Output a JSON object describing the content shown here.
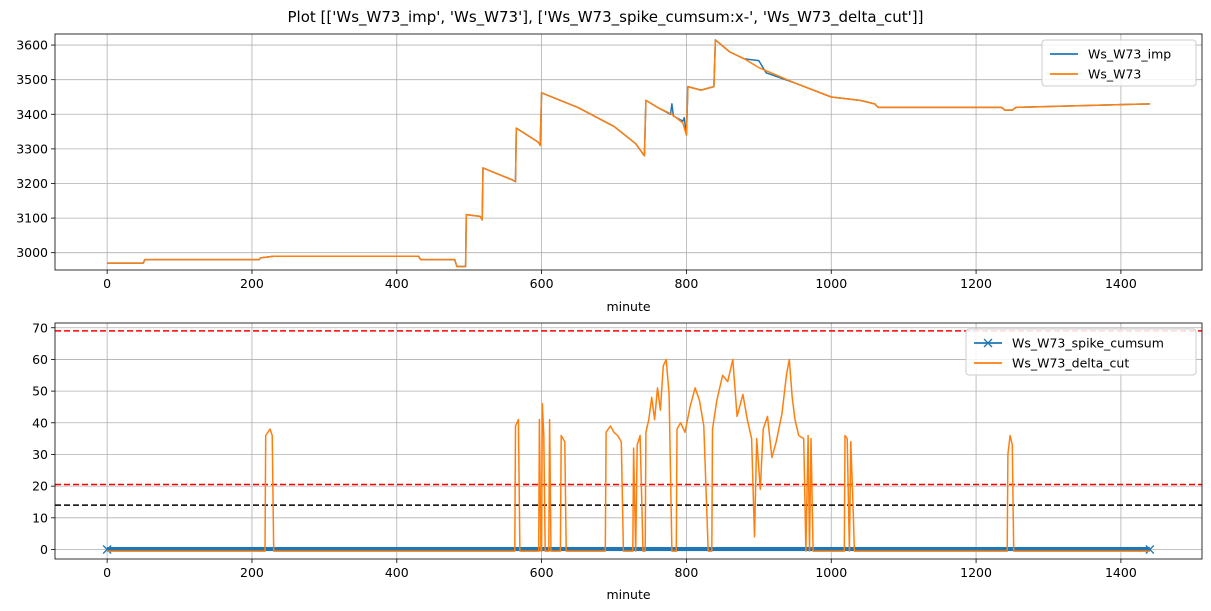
{
  "figure": {
    "suptitle": "Plot [['Ws_W73_imp', 'Ws_W73'], ['Ws_W73_spike_cumsum:x-', 'Ws_W73_delta_cut']]"
  },
  "colors": {
    "blue": "#1f77b4",
    "orange": "#ff7f0e",
    "red": "#ff0000",
    "black": "#000000",
    "grid": "#b0b0b0"
  },
  "chart_data": [
    {
      "type": "line",
      "xlabel": "minute",
      "ylabel": "",
      "xlim": [
        -72,
        1512
      ],
      "ylim": [
        2950,
        3632
      ],
      "xticks": [
        0,
        200,
        400,
        600,
        800,
        1000,
        1200,
        1400
      ],
      "yticks": [
        3000,
        3100,
        3200,
        3300,
        3400,
        3500,
        3600
      ],
      "grid": true,
      "legend": "top-right",
      "series": [
        {
          "name": "Ws_W73_imp",
          "color": "blue",
          "points": [
            [
              0,
              2970
            ],
            [
              50,
              2970
            ],
            [
              52,
              2980
            ],
            [
              210,
              2980
            ],
            [
              212,
              2985
            ],
            [
              230,
              2990
            ],
            [
              430,
              2990
            ],
            [
              433,
              2980
            ],
            [
              480,
              2980
            ],
            [
              483,
              2960
            ],
            [
              495,
              2960
            ],
            [
              496,
              3110
            ],
            [
              515,
              3105
            ],
            [
              518,
              3095
            ],
            [
              519,
              3245
            ],
            [
              560,
              3210
            ],
            [
              564,
              3205
            ],
            [
              565,
              3360
            ],
            [
              595,
              3320
            ],
            [
              598,
              3310
            ],
            [
              600,
              3462
            ],
            [
              650,
              3420
            ],
            [
              700,
              3365
            ],
            [
              730,
              3315
            ],
            [
              742,
              3280
            ],
            [
              744,
              3440
            ],
            [
              760,
              3420
            ],
            [
              778,
              3400
            ],
            [
              780,
              3430
            ],
            [
              782,
              3395
            ],
            [
              795,
              3380
            ],
            [
              797,
              3390
            ],
            [
              800,
              3340
            ],
            [
              802,
              3480
            ],
            [
              820,
              3470
            ],
            [
              838,
              3480
            ],
            [
              840,
              3615
            ],
            [
              860,
              3580
            ],
            [
              880,
              3560
            ],
            [
              900,
              3555
            ],
            [
              910,
              3520
            ],
            [
              950,
              3490
            ],
            [
              1000,
              3450
            ],
            [
              1040,
              3440
            ],
            [
              1060,
              3430
            ],
            [
              1065,
              3420
            ],
            [
              1235,
              3420
            ],
            [
              1240,
              3412
            ],
            [
              1250,
              3412
            ],
            [
              1255,
              3420
            ],
            [
              1440,
              3430
            ]
          ]
        },
        {
          "name": "Ws_W73",
          "color": "orange",
          "points": [
            [
              0,
              2970
            ],
            [
              50,
              2970
            ],
            [
              52,
              2980
            ],
            [
              210,
              2980
            ],
            [
              212,
              2985
            ],
            [
              230,
              2990
            ],
            [
              430,
              2990
            ],
            [
              433,
              2980
            ],
            [
              480,
              2980
            ],
            [
              483,
              2960
            ],
            [
              495,
              2960
            ],
            [
              496,
              3110
            ],
            [
              515,
              3105
            ],
            [
              518,
              3095
            ],
            [
              519,
              3245
            ],
            [
              560,
              3210
            ],
            [
              564,
              3205
            ],
            [
              565,
              3360
            ],
            [
              595,
              3320
            ],
            [
              598,
              3310
            ],
            [
              600,
              3462
            ],
            [
              650,
              3420
            ],
            [
              700,
              3365
            ],
            [
              730,
              3315
            ],
            [
              742,
              3280
            ],
            [
              744,
              3440
            ],
            [
              760,
              3420
            ],
            [
              780,
              3400
            ],
            [
              795,
              3375
            ],
            [
              800,
              3340
            ],
            [
              802,
              3480
            ],
            [
              820,
              3470
            ],
            [
              838,
              3480
            ],
            [
              840,
              3615
            ],
            [
              860,
              3580
            ],
            [
              880,
              3560
            ],
            [
              900,
              3535
            ],
            [
              950,
              3490
            ],
            [
              1000,
              3450
            ],
            [
              1040,
              3440
            ],
            [
              1060,
              3430
            ],
            [
              1065,
              3420
            ],
            [
              1235,
              3420
            ],
            [
              1240,
              3412
            ],
            [
              1250,
              3412
            ],
            [
              1255,
              3420
            ],
            [
              1440,
              3430
            ]
          ]
        }
      ]
    },
    {
      "type": "line",
      "xlabel": "minute",
      "ylabel": "",
      "xlim": [
        -72,
        1512
      ],
      "ylim": [
        -3,
        71.5
      ],
      "xticks": [
        0,
        200,
        400,
        600,
        800,
        1000,
        1200,
        1400
      ],
      "yticks": [
        0,
        10,
        20,
        30,
        40,
        50,
        60,
        70
      ],
      "grid": true,
      "legend": "top-right",
      "hlines": [
        {
          "y": 69,
          "color": "red",
          "style": "dashed"
        },
        {
          "y": 20.5,
          "color": "red",
          "style": "dashed"
        },
        {
          "y": 14,
          "color": "black",
          "style": "dashed"
        }
      ],
      "series": [
        {
          "name": "Ws_W73_spike_cumsum",
          "color": "blue",
          "marker": "x",
          "x_range": [
            0,
            1440
          ],
          "x_step": 1,
          "y_band": [
            -0.5,
            0.8
          ]
        },
        {
          "name": "Ws_W73_delta_cut",
          "color": "orange",
          "points": [
            [
              0,
              -0.5
            ],
            [
              218,
              -0.5
            ],
            [
              219,
              36
            ],
            [
              222,
              37
            ],
            [
              225,
              38
            ],
            [
              228,
              36
            ],
            [
              230,
              -0.5
            ],
            [
              563,
              -0.5
            ],
            [
              564,
              39
            ],
            [
              568,
              41
            ],
            [
              570,
              -0.5
            ],
            [
              596,
              -0.5
            ],
            [
              597,
              41
            ],
            [
              599,
              -0.5
            ],
            [
              600,
              -0.5
            ],
            [
              601,
              46
            ],
            [
              603,
              36
            ],
            [
              605,
              -0.5
            ],
            [
              610,
              -0.5
            ],
            [
              611,
              41
            ],
            [
              613,
              -0.5
            ],
            [
              626,
              -0.5
            ],
            [
              627,
              36
            ],
            [
              632,
              34
            ],
            [
              634,
              -0.5
            ],
            [
              688,
              -0.5
            ],
            [
              689,
              37
            ],
            [
              695,
              39
            ],
            [
              700,
              37
            ],
            [
              705,
              36
            ],
            [
              710,
              34
            ],
            [
              713,
              -0.5
            ],
            [
              726,
              -0.5
            ],
            [
              727,
              32
            ],
            [
              730,
              -0.5
            ],
            [
              732,
              33
            ],
            [
              736,
              36
            ],
            [
              740,
              -0.5
            ],
            [
              743,
              -0.5
            ],
            [
              744,
              37
            ],
            [
              748,
              41
            ],
            [
              752,
              48
            ],
            [
              756,
              41
            ],
            [
              760,
              51
            ],
            [
              764,
              44
            ],
            [
              768,
              58
            ],
            [
              772,
              60
            ],
            [
              776,
              49
            ],
            [
              780,
              -0.5
            ],
            [
              786,
              -0.5
            ],
            [
              787,
              38
            ],
            [
              792,
              40
            ],
            [
              798,
              37
            ],
            [
              805,
              45
            ],
            [
              812,
              51
            ],
            [
              818,
              47
            ],
            [
              824,
              39
            ],
            [
              830,
              -0.5
            ],
            [
              835,
              -0.5
            ],
            [
              836,
              38
            ],
            [
              842,
              47
            ],
            [
              850,
              55
            ],
            [
              857,
              53
            ],
            [
              864,
              60
            ],
            [
              870,
              42
            ],
            [
              878,
              49
            ],
            [
              884,
              41
            ],
            [
              890,
              35
            ],
            [
              894,
              4
            ],
            [
              897,
              35
            ],
            [
              902,
              19
            ],
            [
              906,
              38
            ],
            [
              912,
              42
            ],
            [
              918,
              29
            ],
            [
              924,
              34
            ],
            [
              932,
              43
            ],
            [
              938,
              55
            ],
            [
              942,
              60
            ],
            [
              946,
              48
            ],
            [
              950,
              41
            ],
            [
              955,
              36
            ],
            [
              962,
              35
            ],
            [
              965,
              -0.5
            ],
            [
              968,
              36
            ],
            [
              970,
              -0.5
            ],
            [
              972,
              35
            ],
            [
              975,
              -0.5
            ],
            [
              1018,
              -0.5
            ],
            [
              1019,
              36
            ],
            [
              1022,
              35
            ],
            [
              1025,
              -0.5
            ],
            [
              1027,
              34
            ],
            [
              1030,
              14
            ],
            [
              1032,
              -0.5
            ],
            [
              1243,
              -0.5
            ],
            [
              1244,
              30
            ],
            [
              1247,
              36
            ],
            [
              1250,
              33
            ],
            [
              1252,
              -0.5
            ],
            [
              1440,
              -0.5
            ]
          ]
        }
      ]
    }
  ]
}
